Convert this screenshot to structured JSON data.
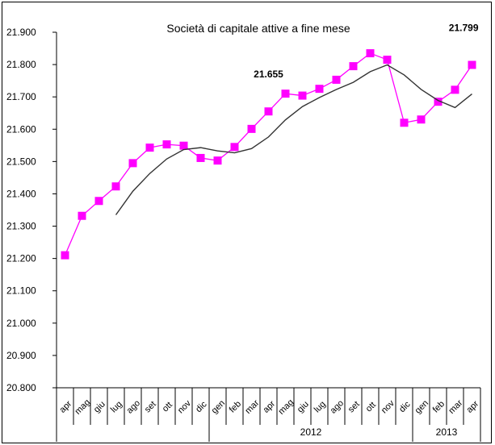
{
  "chart_data": {
    "type": "line",
    "title": "Società di capitale attive a fine mese",
    "categories": [
      "apr",
      "mag",
      "giu",
      "lug",
      "ago",
      "set",
      "ott",
      "nov",
      "dic",
      "gen",
      "feb",
      "mar",
      "apr",
      "mag",
      "giu",
      "lug",
      "ago",
      "set",
      "ott",
      "nov",
      "dic",
      "gen",
      "feb",
      "mar",
      "apr"
    ],
    "year_groups": [
      {
        "label": "",
        "start": 0,
        "end": 8
      },
      {
        "label": "2012",
        "start": 9,
        "end": 20
      },
      {
        "label": "2013",
        "start": 21,
        "end": 24
      }
    ],
    "series": [
      {
        "marker": "square",
        "color": "#ff00ff",
        "values": [
          21210,
          21332,
          21378,
          21423,
          21495,
          21543,
          21553,
          21549,
          21511,
          21503,
          21545,
          21601,
          21655,
          21710,
          21704,
          21725,
          21753,
          21795,
          21835,
          21815,
          21620,
          21630,
          21685,
          21722,
          21799
        ]
      },
      {
        "marker": "none",
        "color": "#333333",
        "values": [
          null,
          null,
          null,
          21335,
          21408,
          21463,
          21508,
          21537,
          21543,
          21533,
          21527,
          21540,
          21576,
          21629,
          21670,
          21698,
          21723,
          21745,
          21778,
          21799,
          21768,
          21723,
          21689,
          21667,
          21709
        ]
      }
    ],
    "data_labels": [
      {
        "index": 12,
        "text": "21.655"
      },
      {
        "index": 24,
        "text": "21.799"
      }
    ],
    "ylim": [
      20800,
      21900
    ],
    "yticks": [
      20800,
      20900,
      21000,
      21100,
      21200,
      21300,
      21400,
      21500,
      21600,
      21700,
      21800,
      21900
    ],
    "ytick_labels": [
      "20.800",
      "20.900",
      "21.000",
      "21.100",
      "21.200",
      "21.300",
      "21.400",
      "21.500",
      "21.600",
      "21.700",
      "21.800",
      "21.900"
    ],
    "grid": false
  }
}
